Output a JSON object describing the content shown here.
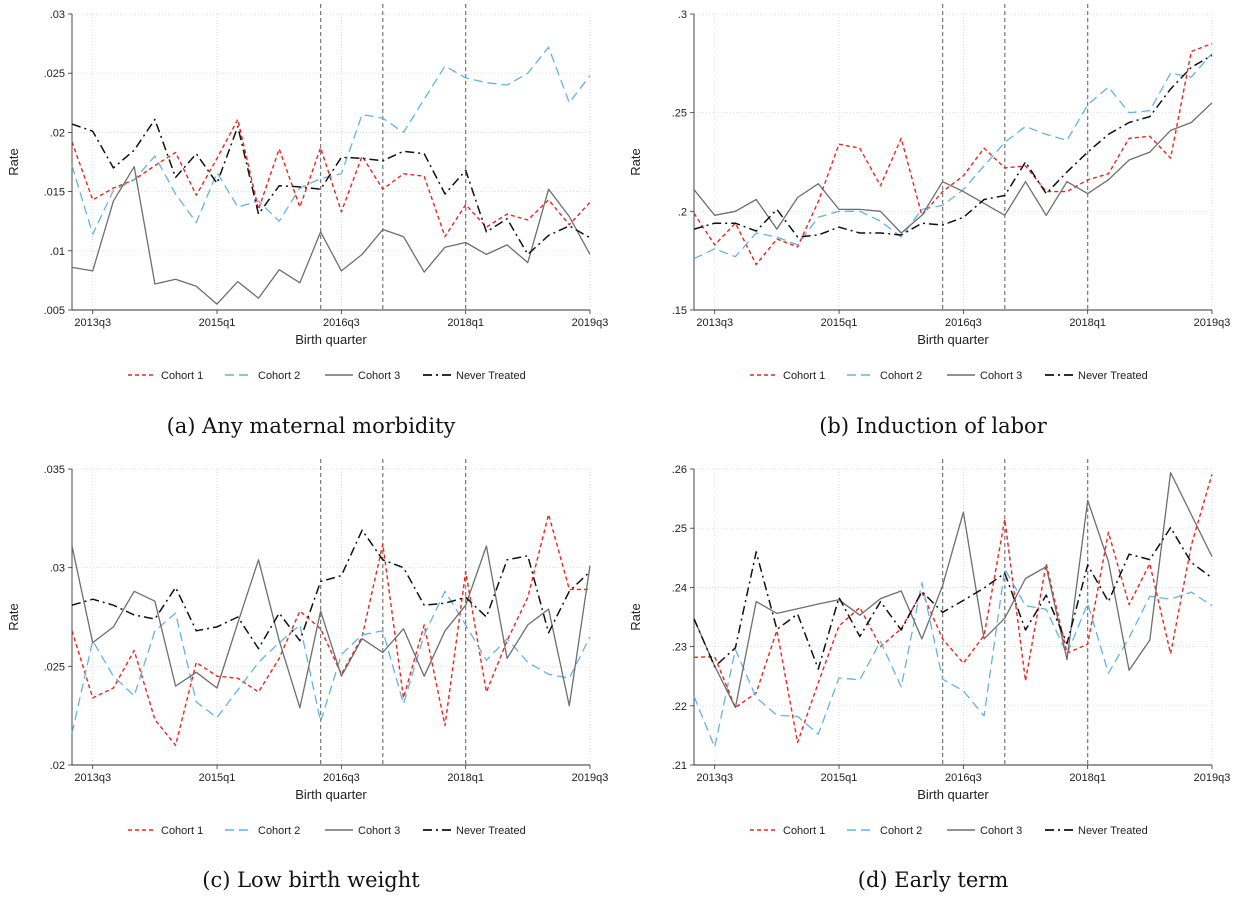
{
  "legend": [
    "Cohort 1",
    "Cohort 2",
    "Cohort 3",
    "Never Treated"
  ],
  "series_style": [
    {
      "color": "#e8261f",
      "dash": "4,3",
      "width": 1.4
    },
    {
      "color": "#63b4e2",
      "dash": "9,5",
      "width": 1.3
    },
    {
      "color": "#6e6e6e",
      "dash": "",
      "width": 1.3
    },
    {
      "color": "#111111",
      "dash": "9,4,2,4",
      "width": 1.5
    }
  ],
  "x_axis": {
    "label": "Birth quarter",
    "tick_labels": [
      "2013q3",
      "2015q1",
      "2016q3",
      "2018q1",
      "2019q3"
    ],
    "tick_positions": [
      2,
      8,
      14,
      20,
      26
    ],
    "range": [
      1,
      26
    ]
  },
  "treatment_lines": [
    13,
    16,
    20
  ],
  "chart_data": [
    {
      "type": "line",
      "caption": "(a) Any maternal morbidity",
      "ylabel": "Rate",
      "ylim": [
        0.005,
        0.03
      ],
      "yticks": [
        0.005,
        0.01,
        0.015,
        0.02,
        0.025,
        0.03
      ],
      "ytick_labels": [
        ".005",
        ".01",
        ".015",
        ".02",
        ".025",
        ".03"
      ],
      "x": [
        1,
        2,
        3,
        4,
        5,
        6,
        7,
        8,
        9,
        10,
        11,
        12,
        13,
        14,
        15,
        16,
        17,
        18,
        19,
        20,
        21,
        22,
        23,
        24,
        25,
        26
      ],
      "series": [
        {
          "name": "Cohort 1",
          "values": [
            0.0192,
            0.0143,
            0.0153,
            0.016,
            0.0172,
            0.0183,
            0.0147,
            0.0178,
            0.0211,
            0.0135,
            0.0186,
            0.0137,
            0.0187,
            0.0133,
            0.018,
            0.0152,
            0.0165,
            0.0163,
            0.0112,
            0.0139,
            0.012,
            0.0131,
            0.0126,
            0.0143,
            0.0122,
            0.0141
          ]
        },
        {
          "name": "Cohort 2",
          "values": [
            0.0172,
            0.0114,
            0.0151,
            0.016,
            0.018,
            0.0148,
            0.0124,
            0.0166,
            0.0137,
            0.0142,
            0.0125,
            0.0153,
            0.0161,
            0.0165,
            0.0215,
            0.0212,
            0.02,
            0.0228,
            0.0256,
            0.0246,
            0.0242,
            0.024,
            0.025,
            0.0272,
            0.0225,
            0.0248
          ]
        },
        {
          "name": "Cohort 3",
          "values": [
            0.0086,
            0.0083,
            0.0142,
            0.0171,
            0.0072,
            0.0076,
            0.007,
            0.0055,
            0.0074,
            0.006,
            0.0084,
            0.0073,
            0.0116,
            0.0083,
            0.0097,
            0.0118,
            0.0112,
            0.0082,
            0.0103,
            0.0107,
            0.0097,
            0.0105,
            0.009,
            0.0152,
            0.0129,
            0.0097
          ]
        },
        {
          "name": "Never Treated",
          "values": [
            0.0207,
            0.0201,
            0.017,
            0.0185,
            0.0211,
            0.0162,
            0.0182,
            0.0157,
            0.0205,
            0.0131,
            0.0155,
            0.0154,
            0.0152,
            0.0179,
            0.0178,
            0.0176,
            0.0184,
            0.0182,
            0.0148,
            0.0168,
            0.0116,
            0.0127,
            0.0097,
            0.0113,
            0.0121,
            0.0111
          ]
        }
      ]
    },
    {
      "type": "line",
      "caption": "(b) Induction of labor",
      "ylabel": "Rate",
      "ylim": [
        0.15,
        0.3
      ],
      "yticks": [
        0.15,
        0.2,
        0.25,
        0.3
      ],
      "ytick_labels": [
        ".15",
        ".2",
        ".25",
        ".3"
      ],
      "x": [
        1,
        2,
        3,
        4,
        5,
        6,
        7,
        8,
        9,
        10,
        11,
        12,
        13,
        14,
        15,
        16,
        17,
        18,
        19,
        20,
        21,
        22,
        23,
        24,
        25,
        26
      ],
      "series": [
        {
          "name": "Cohort 1",
          "values": [
            0.199,
            0.183,
            0.194,
            0.173,
            0.186,
            0.182,
            0.205,
            0.234,
            0.232,
            0.213,
            0.237,
            0.198,
            0.21,
            0.218,
            0.232,
            0.222,
            0.223,
            0.21,
            0.21,
            0.216,
            0.219,
            0.237,
            0.238,
            0.227,
            0.281,
            0.285
          ]
        },
        {
          "name": "Cohort 2",
          "values": [
            0.176,
            0.181,
            0.177,
            0.189,
            0.187,
            0.183,
            0.197,
            0.2,
            0.2,
            0.195,
            0.187,
            0.201,
            0.203,
            0.211,
            0.223,
            0.235,
            0.243,
            0.239,
            0.236,
            0.254,
            0.263,
            0.25,
            0.251,
            0.27,
            0.268,
            0.28
          ]
        },
        {
          "name": "Cohort 3",
          "values": [
            0.211,
            0.198,
            0.2,
            0.206,
            0.191,
            0.207,
            0.214,
            0.201,
            0.201,
            0.2,
            0.189,
            0.198,
            0.215,
            0.21,
            0.204,
            0.198,
            0.215,
            0.198,
            0.215,
            0.209,
            0.216,
            0.226,
            0.23,
            0.241,
            0.245,
            0.255
          ]
        },
        {
          "name": "Never Treated",
          "values": [
            0.191,
            0.194,
            0.194,
            0.19,
            0.201,
            0.187,
            0.188,
            0.192,
            0.189,
            0.189,
            0.188,
            0.194,
            0.193,
            0.197,
            0.206,
            0.208,
            0.225,
            0.209,
            0.22,
            0.23,
            0.239,
            0.245,
            0.248,
            0.262,
            0.273,
            0.279
          ]
        }
      ]
    },
    {
      "type": "line",
      "caption": "(c) Low birth weight",
      "ylabel": "Rate",
      "ylim": [
        0.02,
        0.035
      ],
      "yticks": [
        0.02,
        0.025,
        0.03,
        0.035
      ],
      "ytick_labels": [
        ".02",
        ".025",
        ".03",
        ".035"
      ],
      "x": [
        1,
        2,
        3,
        4,
        5,
        6,
        7,
        8,
        9,
        10,
        11,
        12,
        13,
        14,
        15,
        16,
        17,
        18,
        19,
        20,
        21,
        22,
        23,
        24,
        25,
        26
      ],
      "series": [
        {
          "name": "Cohort 1",
          "values": [
            0.0268,
            0.0234,
            0.0239,
            0.0258,
            0.0223,
            0.021,
            0.0252,
            0.0245,
            0.0244,
            0.0237,
            0.0254,
            0.0278,
            0.0269,
            0.0246,
            0.0265,
            0.0312,
            0.0234,
            0.0271,
            0.022,
            0.0298,
            0.0237,
            0.0263,
            0.0285,
            0.0327,
            0.0289,
            0.0289
          ]
        },
        {
          "name": "Cohort 2",
          "values": [
            0.0216,
            0.0263,
            0.0245,
            0.0235,
            0.0268,
            0.0277,
            0.0232,
            0.0224,
            0.0238,
            0.0252,
            0.0262,
            0.0271,
            0.0222,
            0.0256,
            0.0266,
            0.0268,
            0.0231,
            0.0266,
            0.0288,
            0.0271,
            0.0253,
            0.0264,
            0.0252,
            0.0246,
            0.0244,
            0.0265
          ]
        },
        {
          "name": "Cohort 3",
          "values": [
            0.0311,
            0.0262,
            0.027,
            0.0288,
            0.0283,
            0.024,
            0.0247,
            0.0239,
            0.0272,
            0.0304,
            0.0263,
            0.0229,
            0.0278,
            0.0245,
            0.0264,
            0.0257,
            0.0269,
            0.0245,
            0.0268,
            0.0281,
            0.0311,
            0.0254,
            0.0271,
            0.0279,
            0.023,
            0.0301
          ]
        },
        {
          "name": "Never Treated",
          "values": [
            0.0281,
            0.0284,
            0.0281,
            0.0276,
            0.0274,
            0.029,
            0.0268,
            0.027,
            0.0275,
            0.0259,
            0.0277,
            0.0263,
            0.0293,
            0.0296,
            0.0319,
            0.0304,
            0.03,
            0.0281,
            0.0282,
            0.0285,
            0.0275,
            0.0304,
            0.0306,
            0.0267,
            0.0288,
            0.0298
          ]
        }
      ]
    },
    {
      "type": "line",
      "caption": "(d) Early term",
      "ylabel": "Rate",
      "ylim": [
        0.21,
        0.26
      ],
      "yticks": [
        0.21,
        0.22,
        0.23,
        0.24,
        0.25,
        0.26
      ],
      "ytick_labels": [
        ".21",
        ".22",
        ".23",
        ".24",
        ".25",
        ".26"
      ],
      "x": [
        1,
        2,
        3,
        4,
        5,
        6,
        7,
        8,
        9,
        10,
        11,
        12,
        13,
        14,
        15,
        16,
        17,
        18,
        19,
        20,
        21,
        22,
        23,
        24,
        25,
        26
      ],
      "series": [
        {
          "name": "Cohort 1",
          "values": [
            0.2282,
            0.2283,
            0.2197,
            0.2222,
            0.2327,
            0.2138,
            0.2239,
            0.2335,
            0.2366,
            0.23,
            0.233,
            0.2392,
            0.2313,
            0.2272,
            0.2319,
            0.2515,
            0.2242,
            0.244,
            0.2289,
            0.2304,
            0.2493,
            0.2371,
            0.244,
            0.2288,
            0.2471,
            0.2591
          ]
        },
        {
          "name": "Cohort 2",
          "values": [
            0.2216,
            0.213,
            0.2295,
            0.2214,
            0.2184,
            0.2182,
            0.2152,
            0.2247,
            0.2244,
            0.2309,
            0.2232,
            0.2408,
            0.2245,
            0.2225,
            0.2183,
            0.2431,
            0.2369,
            0.2363,
            0.2287,
            0.2373,
            0.2255,
            0.2315,
            0.2385,
            0.238,
            0.2392,
            0.2369
          ]
        },
        {
          "name": "Cohort 3",
          "values": [
            0.2347,
            0.2267,
            0.2197,
            0.2376,
            0.2356,
            0.2364,
            0.2372,
            0.2379,
            0.2353,
            0.2381,
            0.2394,
            0.2313,
            0.2403,
            0.2527,
            0.2313,
            0.2348,
            0.2415,
            0.2435,
            0.2278,
            0.2547,
            0.2444,
            0.226,
            0.2311,
            0.2594,
            0.2523,
            0.2452
          ]
        },
        {
          "name": "Never Treated",
          "values": [
            0.2347,
            0.2266,
            0.2298,
            0.246,
            0.2329,
            0.2355,
            0.2262,
            0.2383,
            0.2317,
            0.2376,
            0.2328,
            0.2393,
            0.2358,
            0.2378,
            0.2399,
            0.2424,
            0.2328,
            0.2387,
            0.2305,
            0.2438,
            0.2376,
            0.2456,
            0.2447,
            0.2501,
            0.2442,
            0.2416
          ]
        }
      ]
    }
  ]
}
